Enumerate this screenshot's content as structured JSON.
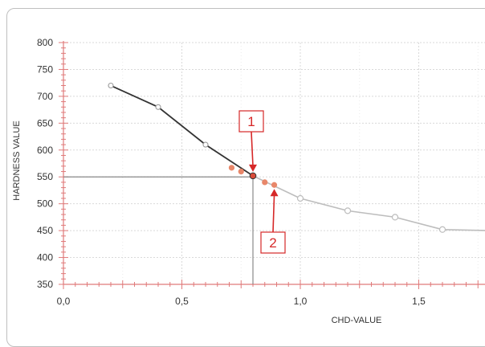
{
  "chart_data": {
    "type": "line",
    "title": "",
    "xlabel": "CHD-VALUE",
    "ylabel": "HARDNESS VALUE",
    "xlim": [
      0.0,
      1.8
    ],
    "ylim": [
      350,
      800
    ],
    "x_ticks": [
      {
        "value": 0.0,
        "label": "0,0"
      },
      {
        "value": 0.5,
        "label": "0,5"
      },
      {
        "value": 1.0,
        "label": "1,0"
      },
      {
        "value": 1.5,
        "label": "1,5"
      }
    ],
    "y_ticks": [
      {
        "value": 350,
        "label": "350"
      },
      {
        "value": 400,
        "label": "400"
      },
      {
        "value": 450,
        "label": "450"
      },
      {
        "value": 500,
        "label": "500"
      },
      {
        "value": 550,
        "label": "550"
      },
      {
        "value": 600,
        "label": "600"
      },
      {
        "value": 650,
        "label": "650"
      },
      {
        "value": 700,
        "label": "700"
      },
      {
        "value": 750,
        "label": "750"
      },
      {
        "value": 800,
        "label": "800"
      }
    ],
    "grid": true,
    "series": [
      {
        "role": "measured",
        "color": "#333333",
        "x": [
          0.2,
          0.4,
          0.6,
          0.8
        ],
        "y": [
          720,
          680,
          610,
          552
        ]
      },
      {
        "role": "highlighted",
        "color": "#e8876a",
        "x": [
          0.71,
          0.75,
          0.85,
          0.89
        ],
        "y": [
          567,
          560,
          540,
          535
        ]
      },
      {
        "role": "continuation",
        "color": "#bdbdbd",
        "x": [
          0.8,
          1.0,
          1.2,
          1.4,
          1.6,
          1.8
        ],
        "y": [
          552,
          510,
          487,
          475,
          452,
          450
        ]
      }
    ],
    "reference_lines": {
      "x": 0.8,
      "y": 550,
      "color": "#888888"
    },
    "annotations": [
      {
        "label": "1",
        "color": "#d62828",
        "x": 0.8,
        "y": 552
      },
      {
        "label": "2",
        "color": "#d62828",
        "x": 0.89,
        "y": 535
      }
    ]
  }
}
